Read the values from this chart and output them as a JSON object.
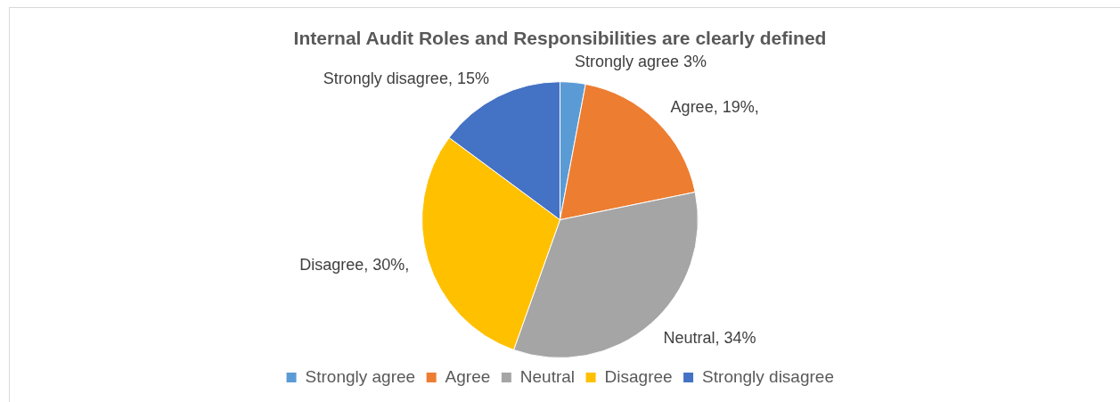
{
  "chart_data": {
    "type": "pie",
    "title": "Internal Audit Roles and Responsibilities are clearly defined",
    "categories": [
      "Strongly agree",
      "Agree",
      "Neutral",
      "Disagree",
      "Strongly disagree"
    ],
    "values": [
      3,
      19,
      34,
      30,
      15
    ],
    "colors": [
      "#5b9bd5",
      "#ed7d31",
      "#a5a5a5",
      "#ffc000",
      "#4472c4"
    ],
    "value_labels": [
      "Strongly agree 3%",
      "Agree, 19%,",
      "Neutral, 34%",
      "Disagree, 30%,",
      "Strongly disagree, 15%"
    ],
    "legend": "bottom"
  }
}
